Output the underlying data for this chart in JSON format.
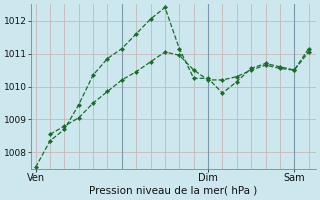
{
  "xlabel": "Pression niveau de la mer( hPa )",
  "background_color": "#cce8ee",
  "plot_bg_color": "#cce8ee",
  "grid_color_h": "#c8b8b8",
  "grid_color_v": "#c8b8b8",
  "line_color": "#1a6b2a",
  "ylim": [
    1007.5,
    1012.5
  ],
  "yticks": [
    1008,
    1009,
    1010,
    1011,
    1012
  ],
  "xlim": [
    -0.3,
    19.5
  ],
  "series1_x": [
    0,
    1,
    2,
    3,
    4,
    5,
    6,
    7,
    8,
    9,
    10,
    11,
    12,
    13,
    14,
    15,
    16,
    17,
    18,
    19
  ],
  "series1_y": [
    1007.55,
    1008.35,
    1008.7,
    1009.45,
    1010.35,
    1010.85,
    1011.15,
    1011.6,
    1012.05,
    1012.4,
    1011.15,
    1010.25,
    1010.25,
    1009.8,
    1010.15,
    1010.55,
    1010.7,
    1010.6,
    1010.5,
    1011.15
  ],
  "series2_x": [
    1,
    2,
    3,
    4,
    5,
    6,
    7,
    8,
    9,
    10,
    11,
    12,
    13,
    14,
    15,
    16,
    17,
    18,
    19
  ],
  "series2_y": [
    1008.55,
    1008.8,
    1009.05,
    1009.5,
    1009.85,
    1010.2,
    1010.45,
    1010.75,
    1011.05,
    1010.95,
    1010.5,
    1010.2,
    1010.2,
    1010.3,
    1010.5,
    1010.65,
    1010.55,
    1010.5,
    1011.05
  ],
  "vline_positions": [
    6,
    12,
    18
  ],
  "xtick_positions": [
    0,
    6,
    12,
    18
  ],
  "xtick_labels": [
    "Ven",
    "Dim",
    "Sam",
    ""
  ],
  "xlabel_fontsize": 7.5,
  "ytick_fontsize": 6.5,
  "xtick_fontsize": 7.0
}
